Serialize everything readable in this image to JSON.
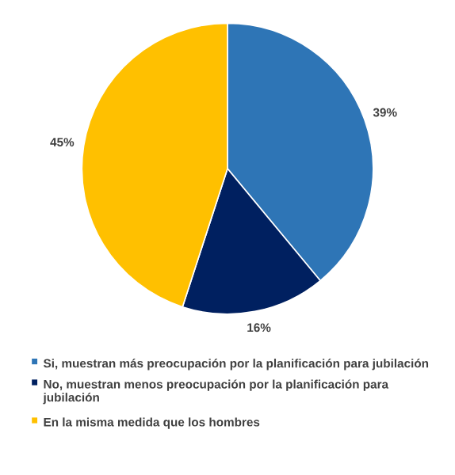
{
  "chart_data": {
    "type": "pie",
    "categories": [
      "Si, muestran más preocupación por la planificación para jubilación",
      "No, muestran menos preocupación por la planificación para jubilación",
      "En la misma medida que los hombres"
    ],
    "values": [
      39,
      16,
      45
    ],
    "colors": [
      "#2e75b6",
      "#002060",
      "#ffc000"
    ],
    "value_labels": [
      "39%",
      "16%",
      "45%"
    ],
    "legend": "bottom"
  }
}
